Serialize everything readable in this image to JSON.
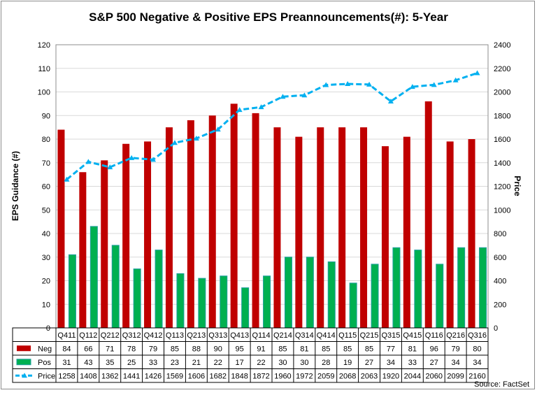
{
  "chart_data": {
    "type": "bar",
    "title": "S&P 500 Negative & Positive EPS Preannouncements(#): 5-Year",
    "ylabel": "EPS Guidance (#)",
    "y2label": "Price",
    "source": "Source: FactSet",
    "ylim": [
      0,
      120
    ],
    "y_ticks": [
      0,
      10,
      20,
      30,
      40,
      50,
      60,
      70,
      80,
      90,
      100,
      110,
      120
    ],
    "y2lim": [
      0,
      2400
    ],
    "y2_ticks": [
      0,
      200,
      400,
      600,
      800,
      1000,
      1200,
      1400,
      1600,
      1800,
      2000,
      2200,
      2400
    ],
    "grid": true,
    "legend": "data-table",
    "categories": [
      "Q411",
      "Q112",
      "Q212",
      "Q312",
      "Q412",
      "Q113",
      "Q213",
      "Q313",
      "Q413",
      "Q114",
      "Q214",
      "Q314",
      "Q414",
      "Q115",
      "Q215",
      "Q315",
      "Q415",
      "Q116",
      "Q216",
      "Q316"
    ],
    "series": [
      {
        "name": "Neg",
        "type": "bar",
        "axis": "left",
        "color": "#c00000",
        "values": [
          84,
          66,
          71,
          78,
          79,
          85,
          88,
          90,
          95,
          91,
          85,
          81,
          85,
          85,
          85,
          77,
          81,
          96,
          79,
          80
        ]
      },
      {
        "name": "Pos",
        "type": "bar",
        "axis": "left",
        "color": "#00b050",
        "values": [
          31,
          43,
          35,
          25,
          33,
          23,
          21,
          22,
          17,
          22,
          30,
          30,
          28,
          19,
          27,
          34,
          33,
          27,
          34,
          34
        ]
      },
      {
        "name": "Price",
        "type": "line",
        "axis": "right",
        "color": "#00b0f0",
        "style": "dashed",
        "values": [
          1258,
          1408,
          1362,
          1441,
          1426,
          1569,
          1606,
          1682,
          1848,
          1872,
          1960,
          1972,
          2059,
          2068,
          2063,
          1920,
          2044,
          2060,
          2099,
          2160
        ]
      }
    ]
  }
}
